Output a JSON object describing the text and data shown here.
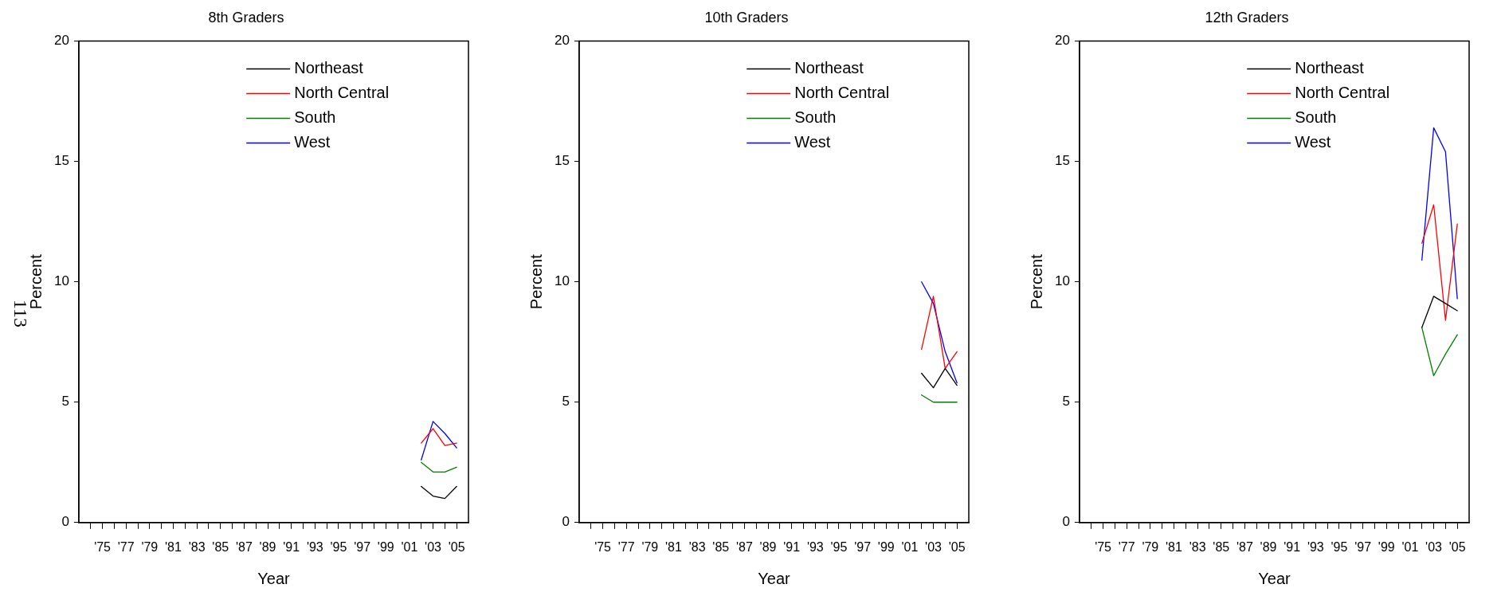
{
  "chart_data": [
    {
      "type": "line",
      "title": "8th Graders",
      "xlabel": "Year",
      "ylabel": "Percent",
      "x": [
        2002,
        2003,
        2004,
        2005
      ],
      "xlim": [
        1973,
        2006
      ],
      "xticks": [
        {
          "value": 1974,
          "label": null
        },
        {
          "value": 1975,
          "label": "'75"
        },
        {
          "value": 1976,
          "label": null
        },
        {
          "value": 1977,
          "label": "'77"
        },
        {
          "value": 1978,
          "label": null
        },
        {
          "value": 1979,
          "label": "'79"
        },
        {
          "value": 1980,
          "label": null
        },
        {
          "value": 1981,
          "label": "'81"
        },
        {
          "value": 1982,
          "label": null
        },
        {
          "value": 1983,
          "label": "'83"
        },
        {
          "value": 1984,
          "label": null
        },
        {
          "value": 1985,
          "label": "'85"
        },
        {
          "value": 1986,
          "label": null
        },
        {
          "value": 1987,
          "label": "'87"
        },
        {
          "value": 1988,
          "label": null
        },
        {
          "value": 1989,
          "label": "'89"
        },
        {
          "value": 1990,
          "label": null
        },
        {
          "value": 1991,
          "label": "'91"
        },
        {
          "value": 1992,
          "label": null
        },
        {
          "value": 1993,
          "label": "'93"
        },
        {
          "value": 1994,
          "label": null
        },
        {
          "value": 1995,
          "label": "'95"
        },
        {
          "value": 1996,
          "label": null
        },
        {
          "value": 1997,
          "label": "'97"
        },
        {
          "value": 1998,
          "label": null
        },
        {
          "value": 1999,
          "label": "'99"
        },
        {
          "value": 2000,
          "label": null
        },
        {
          "value": 2001,
          "label": "'01"
        },
        {
          "value": 2002,
          "label": null
        },
        {
          "value": 2003,
          "label": "'03"
        },
        {
          "value": 2004,
          "label": null
        },
        {
          "value": 2005,
          "label": "'05"
        }
      ],
      "ylim": [
        0,
        20
      ],
      "yticks": [
        0,
        5,
        10,
        15,
        20
      ],
      "grid": false,
      "legend": "top",
      "marker": "none",
      "line_style": "solid",
      "annotations": [
        "113"
      ],
      "series": [
        {
          "name": "Northeast",
          "color": "#000000",
          "values": [
            1.5,
            1.1,
            1.0,
            1.5
          ]
        },
        {
          "name": "North Central",
          "color": "#ff0000",
          "values": [
            3.3,
            3.9,
            3.2,
            3.3
          ]
        },
        {
          "name": "South",
          "color": "#008000",
          "values": [
            2.5,
            2.1,
            2.1,
            2.3
          ]
        },
        {
          "name": "West",
          "color": "#0000ff",
          "values": [
            2.6,
            4.2,
            3.7,
            3.1
          ]
        }
      ]
    },
    {
      "type": "line",
      "title": "10th Graders",
      "xlabel": "Year",
      "ylabel": "Percent",
      "x": [
        2002,
        2003,
        2004,
        2005
      ],
      "xlim": [
        1973,
        2006
      ],
      "xticks": [
        {
          "value": 1974,
          "label": null
        },
        {
          "value": 1975,
          "label": "'75"
        },
        {
          "value": 1976,
          "label": null
        },
        {
          "value": 1977,
          "label": "'77"
        },
        {
          "value": 1978,
          "label": null
        },
        {
          "value": 1979,
          "label": "'79"
        },
        {
          "value": 1980,
          "label": null
        },
        {
          "value": 1981,
          "label": "'81"
        },
        {
          "value": 1982,
          "label": null
        },
        {
          "value": 1983,
          "label": "'83"
        },
        {
          "value": 1984,
          "label": null
        },
        {
          "value": 1985,
          "label": "'85"
        },
        {
          "value": 1986,
          "label": null
        },
        {
          "value": 1987,
          "label": "'87"
        },
        {
          "value": 1988,
          "label": null
        },
        {
          "value": 1989,
          "label": "'89"
        },
        {
          "value": 1990,
          "label": null
        },
        {
          "value": 1991,
          "label": "'91"
        },
        {
          "value": 1992,
          "label": null
        },
        {
          "value": 1993,
          "label": "'93"
        },
        {
          "value": 1994,
          "label": null
        },
        {
          "value": 1995,
          "label": "'95"
        },
        {
          "value": 1996,
          "label": null
        },
        {
          "value": 1997,
          "label": "'97"
        },
        {
          "value": 1998,
          "label": null
        },
        {
          "value": 1999,
          "label": "'99"
        },
        {
          "value": 2000,
          "label": null
        },
        {
          "value": 2001,
          "label": "'01"
        },
        {
          "value": 2002,
          "label": null
        },
        {
          "value": 2003,
          "label": "'03"
        },
        {
          "value": 2004,
          "label": null
        },
        {
          "value": 2005,
          "label": "'05"
        }
      ],
      "ylim": [
        0,
        20
      ],
      "yticks": [
        0,
        5,
        10,
        15,
        20
      ],
      "grid": false,
      "legend": "top",
      "marker": "none",
      "line_style": "solid",
      "series": [
        {
          "name": "Northeast",
          "color": "#000000",
          "values": [
            6.2,
            5.6,
            6.4,
            5.7
          ]
        },
        {
          "name": "North Central",
          "color": "#ff0000",
          "values": [
            7.2,
            9.4,
            6.4,
            7.1
          ]
        },
        {
          "name": "South",
          "color": "#008000",
          "values": [
            5.3,
            5.0,
            5.0,
            5.0
          ]
        },
        {
          "name": "West",
          "color": "#0000ff",
          "values": [
            10.0,
            9.1,
            7.1,
            5.8
          ]
        }
      ]
    },
    {
      "type": "line",
      "title": "12th Graders",
      "xlabel": "Year",
      "ylabel": "Percent",
      "x": [
        2002,
        2003,
        2004,
        2005
      ],
      "xlim": [
        1973,
        2006
      ],
      "xticks": [
        {
          "value": 1974,
          "label": null
        },
        {
          "value": 1975,
          "label": "'75"
        },
        {
          "value": 1976,
          "label": null
        },
        {
          "value": 1977,
          "label": "'77"
        },
        {
          "value": 1978,
          "label": null
        },
        {
          "value": 1979,
          "label": "'79"
        },
        {
          "value": 1980,
          "label": null
        },
        {
          "value": 1981,
          "label": "'81"
        },
        {
          "value": 1982,
          "label": null
        },
        {
          "value": 1983,
          "label": "'83"
        },
        {
          "value": 1984,
          "label": null
        },
        {
          "value": 1985,
          "label": "'85"
        },
        {
          "value": 1986,
          "label": null
        },
        {
          "value": 1987,
          "label": "'87"
        },
        {
          "value": 1988,
          "label": null
        },
        {
          "value": 1989,
          "label": "'89"
        },
        {
          "value": 1990,
          "label": null
        },
        {
          "value": 1991,
          "label": "'91"
        },
        {
          "value": 1992,
          "label": null
        },
        {
          "value": 1993,
          "label": "'93"
        },
        {
          "value": 1994,
          "label": null
        },
        {
          "value": 1995,
          "label": "'95"
        },
        {
          "value": 1996,
          "label": null
        },
        {
          "value": 1997,
          "label": "'97"
        },
        {
          "value": 1998,
          "label": null
        },
        {
          "value": 1999,
          "label": "'99"
        },
        {
          "value": 2000,
          "label": null
        },
        {
          "value": 2001,
          "label": "'01"
        },
        {
          "value": 2002,
          "label": null
        },
        {
          "value": 2003,
          "label": "'03"
        },
        {
          "value": 2004,
          "label": null
        },
        {
          "value": 2005,
          "label": "'05"
        }
      ],
      "ylim": [
        0,
        20
      ],
      "yticks": [
        0,
        5,
        10,
        15,
        20
      ],
      "grid": false,
      "legend": "top",
      "marker": "none",
      "line_style": "solid",
      "series": [
        {
          "name": "Northeast",
          "color": "#000000",
          "values": [
            8.1,
            9.4,
            9.1,
            8.8
          ]
        },
        {
          "name": "North Central",
          "color": "#ff0000",
          "values": [
            11.6,
            13.2,
            8.4,
            12.4
          ]
        },
        {
          "name": "South",
          "color": "#008000",
          "values": [
            8.1,
            6.1,
            7.0,
            7.8
          ]
        },
        {
          "name": "West",
          "color": "#0000ff",
          "values": [
            10.9,
            16.4,
            15.4,
            9.3
          ]
        }
      ]
    }
  ]
}
